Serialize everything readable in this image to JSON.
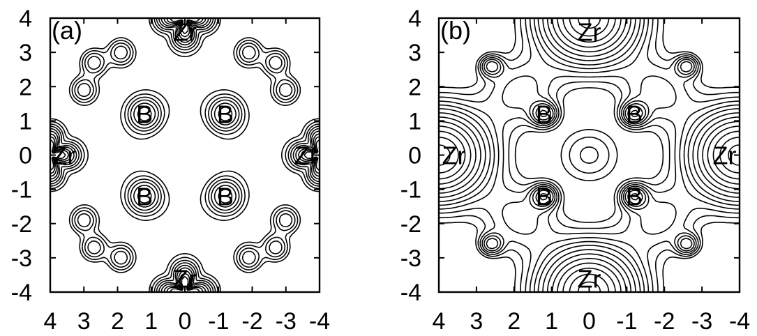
{
  "chart_data": [
    {
      "type": "contour",
      "panel_label": "(a)",
      "xlim": [
        4,
        -4
      ],
      "ylim": [
        -4,
        4
      ],
      "x_ticks": [
        "4",
        "3",
        "2",
        "1",
        "0",
        "-1",
        "-2",
        "-3",
        "-4"
      ],
      "y_ticks": [
        "4",
        "3",
        "2",
        "1",
        "0",
        "-1",
        "-2",
        "-3",
        "-4"
      ],
      "atoms": [
        {
          "label": "Zr",
          "x": 0,
          "y": 3.6
        },
        {
          "label": "Zr",
          "x": 0,
          "y": -3.6
        },
        {
          "label": "Zr",
          "x": 3.6,
          "y": 0
        },
        {
          "label": "Zr",
          "x": -3.6,
          "y": 0
        },
        {
          "label": "B",
          "x": 1.2,
          "y": 1.2
        },
        {
          "label": "B",
          "x": -1.2,
          "y": 1.2
        },
        {
          "label": "B",
          "x": 1.2,
          "y": -1.2
        },
        {
          "label": "B",
          "x": -1.2,
          "y": -1.2
        }
      ]
    },
    {
      "type": "contour",
      "panel_label": "(b)",
      "xlim": [
        4,
        -4
      ],
      "ylim": [
        -4,
        4
      ],
      "x_ticks": [
        "4",
        "3",
        "2",
        "1",
        "0",
        "-1",
        "-2",
        "-3",
        "-4"
      ],
      "y_ticks": [
        "4",
        "3",
        "2",
        "1",
        "0",
        "-1",
        "-2",
        "-3",
        "-4"
      ],
      "atoms": [
        {
          "label": "Zr",
          "x": 0,
          "y": 3.6
        },
        {
          "label": "Zr",
          "x": 0,
          "y": -3.6
        },
        {
          "label": "Zr",
          "x": 3.6,
          "y": 0
        },
        {
          "label": "Zr",
          "x": -3.6,
          "y": 0
        },
        {
          "label": "B",
          "x": 1.2,
          "y": 1.2
        },
        {
          "label": "B",
          "x": -1.2,
          "y": 1.2
        },
        {
          "label": "B",
          "x": 1.2,
          "y": -1.2
        },
        {
          "label": "B",
          "x": -1.2,
          "y": -1.2
        }
      ]
    }
  ]
}
